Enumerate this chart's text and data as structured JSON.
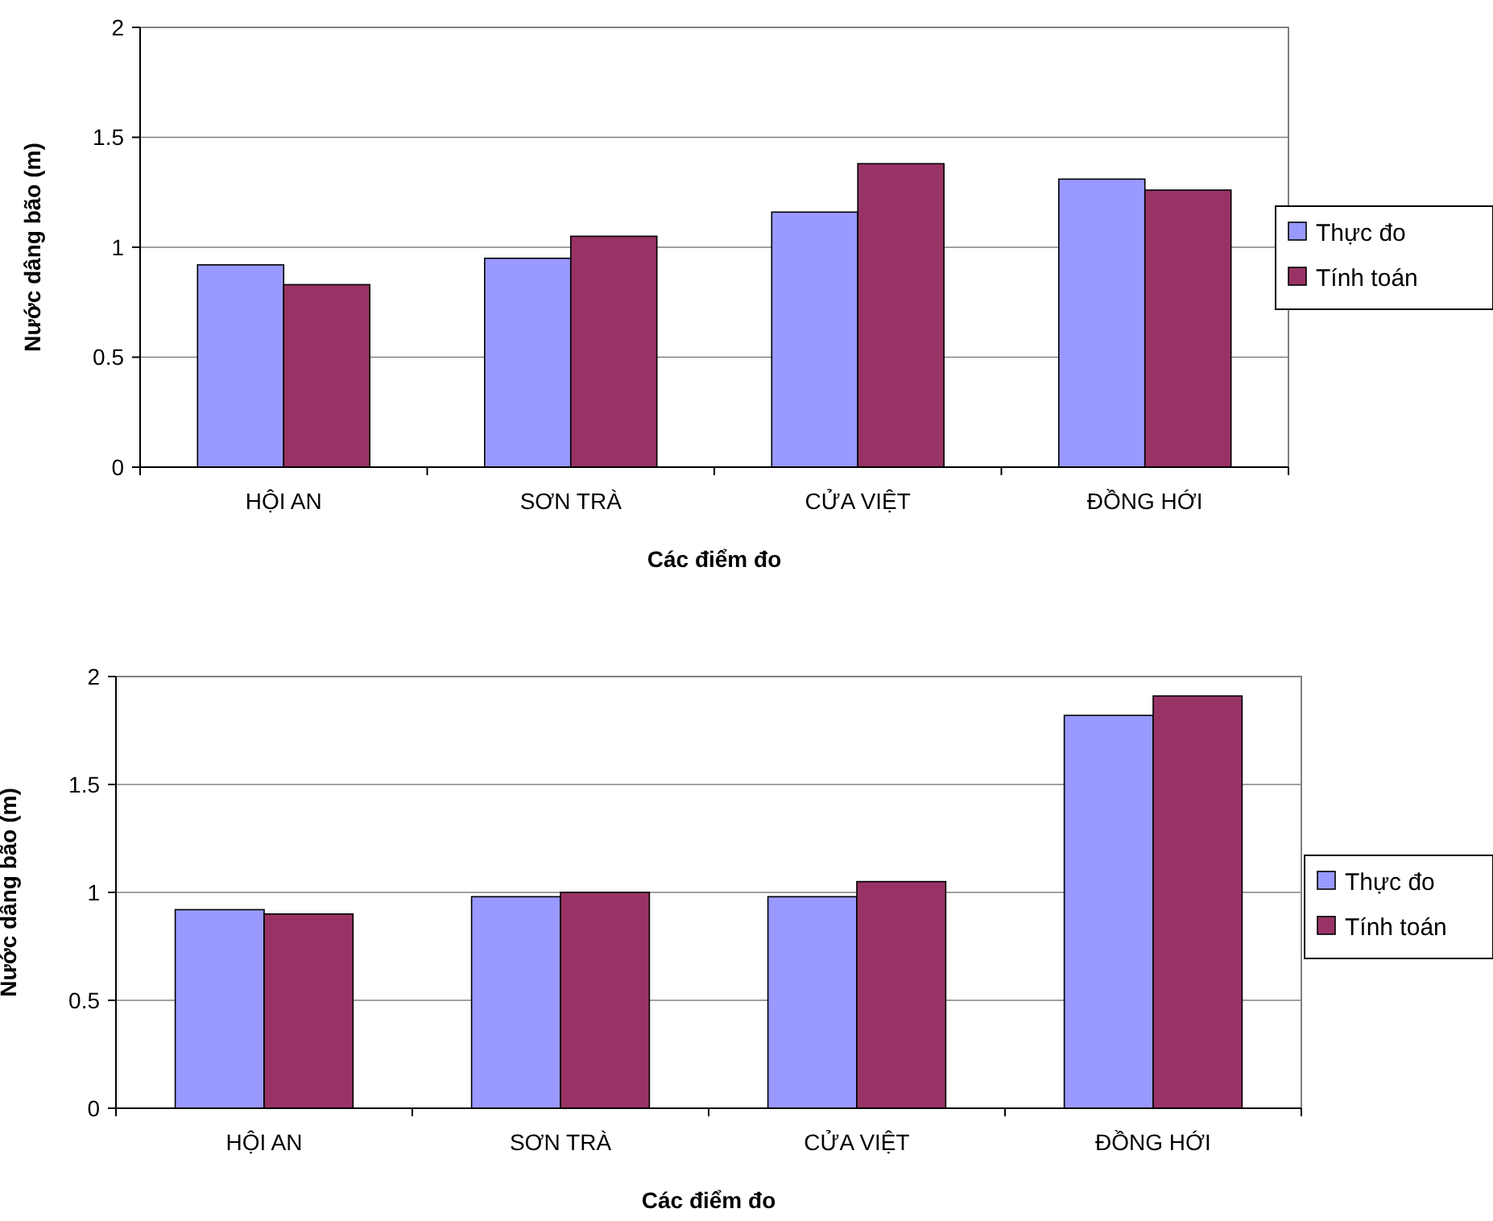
{
  "chart_data": [
    {
      "type": "bar",
      "xlabel": "Các điểm đo",
      "ylabel": "Nước dâng bão (m)",
      "categories": [
        "HỘI AN",
        "SƠN TRÀ",
        "CỬA VIỆT",
        "ĐỒNG HỚI"
      ],
      "series": [
        {
          "name": "Thực đo",
          "color": "#9999ff",
          "values": [
            0.92,
            0.95,
            1.16,
            1.31
          ]
        },
        {
          "name": "Tính toán",
          "color": "#993366",
          "values": [
            0.83,
            1.05,
            1.38,
            1.26
          ]
        }
      ],
      "ylim": [
        0,
        2
      ],
      "yticks": [
        0,
        0.5,
        1,
        1.5,
        2
      ],
      "grid": "y",
      "legend": "right"
    },
    {
      "type": "bar",
      "xlabel": "Các điểm đo",
      "ylabel": "Nước dâng bão (m)",
      "categories": [
        "HỘI AN",
        "SƠN TRÀ",
        "CỬA VIỆT",
        "ĐỒNG HỚI"
      ],
      "series": [
        {
          "name": "Thực đo",
          "color": "#9999ff",
          "values": [
            0.92,
            0.98,
            0.98,
            1.82
          ]
        },
        {
          "name": "Tính toán",
          "color": "#993366",
          "values": [
            0.9,
            1.0,
            1.05,
            1.91
          ]
        }
      ],
      "ylim": [
        0,
        2
      ],
      "yticks": [
        0,
        0.5,
        1,
        1.5,
        2
      ],
      "grid": "y",
      "legend": "right"
    }
  ]
}
